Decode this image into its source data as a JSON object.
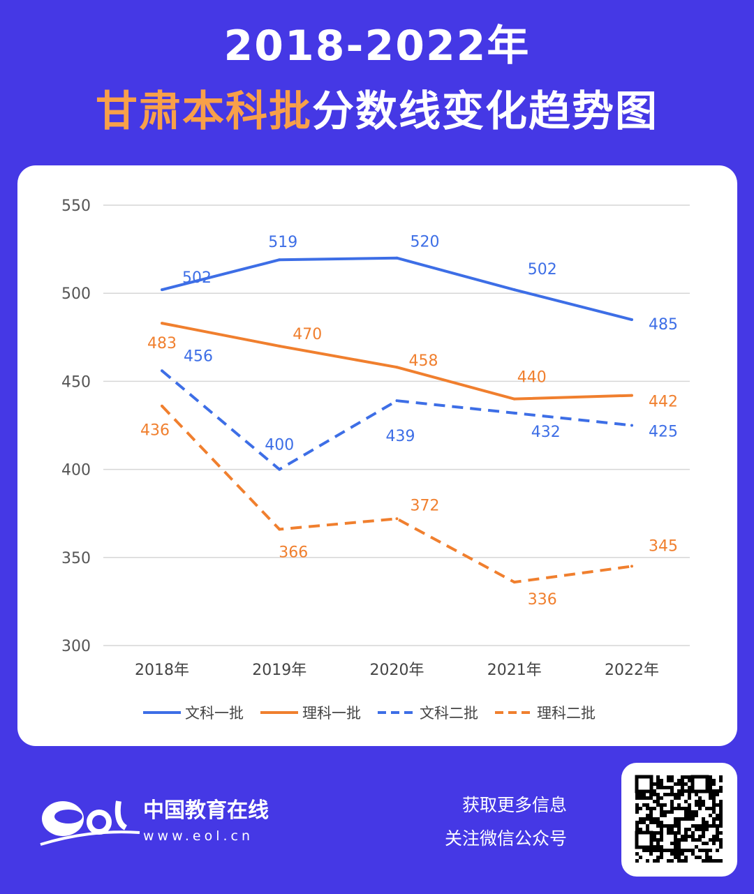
{
  "title": {
    "line1": "2018-2022年",
    "line2_highlight": "甘肃本科批",
    "line2_rest": "分数线变化趋势图"
  },
  "colors": {
    "background": "#4538e5",
    "highlight": "#f8a049",
    "blue": "#3d6ee6",
    "orange": "#f07f2e"
  },
  "chart_data": {
    "type": "line",
    "categories": [
      "2018年",
      "2019年",
      "2020年",
      "2021年",
      "2022年"
    ],
    "ylim": [
      300,
      550
    ],
    "yticks": [
      300,
      350,
      400,
      450,
      500,
      550
    ],
    "grid": true,
    "legend": "bottom",
    "series": [
      {
        "name": "文科一批",
        "values": [
          502,
          519,
          520,
          502,
          485
        ],
        "color": "#3d6ee6",
        "dash": false
      },
      {
        "name": "理科一批",
        "values": [
          483,
          470,
          458,
          440,
          442
        ],
        "color": "#f07f2e",
        "dash": false
      },
      {
        "name": "文科二批",
        "values": [
          456,
          400,
          439,
          432,
          425
        ],
        "color": "#3d6ee6",
        "dash": true
      },
      {
        "name": "理科二批",
        "values": [
          436,
          366,
          372,
          336,
          345
        ],
        "color": "#f07f2e",
        "dash": true
      }
    ]
  },
  "footer": {
    "brand": "中国教育在线",
    "url": "www.eol.cn",
    "logo_text": "eol",
    "info_line1": "获取更多信息",
    "info_line2": "关注微信公众号"
  }
}
